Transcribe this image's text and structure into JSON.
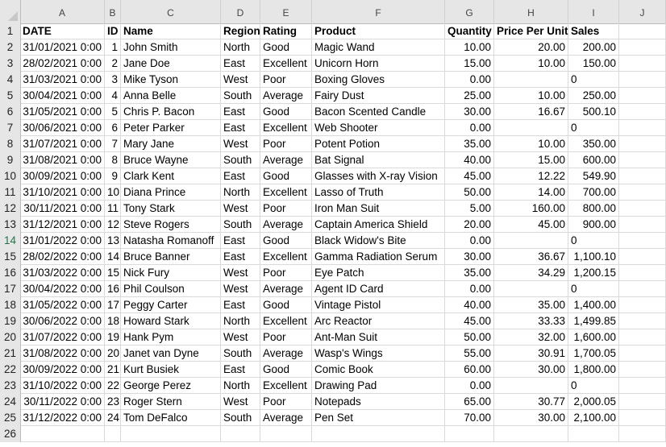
{
  "columns": [
    "A",
    "B",
    "C",
    "D",
    "E",
    "F",
    "G",
    "H",
    "I",
    "J"
  ],
  "headers": [
    "DATE",
    "ID",
    "Name",
    "Region",
    "Rating",
    "Product",
    "Quantity",
    "Price Per Unit",
    "Sales"
  ],
  "rows": [
    [
      "31/01/2021 0:00",
      "1",
      "John Smith",
      "North",
      "Good",
      "Magic Wand",
      "10.00",
      "20.00",
      "200.00"
    ],
    [
      "28/02/2021 0:00",
      "2",
      "Jane Doe",
      "East",
      "Excellent",
      "Unicorn Horn",
      "15.00",
      "10.00",
      "150.00"
    ],
    [
      "31/03/2021 0:00",
      "3",
      "Mike Tyson",
      "West",
      "Poor",
      "Boxing Gloves",
      "0.00",
      "",
      "0"
    ],
    [
      "30/04/2021 0:00",
      "4",
      "Anna Belle",
      "South",
      "Average",
      "Fairy Dust",
      "25.00",
      "10.00",
      "250.00"
    ],
    [
      "31/05/2021 0:00",
      "5",
      "Chris P. Bacon",
      "East",
      "Good",
      "Bacon Scented Candle",
      "30.00",
      "16.67",
      "500.10"
    ],
    [
      "30/06/2021 0:00",
      "6",
      "Peter Parker",
      "East",
      "Excellent",
      "Web Shooter",
      "0.00",
      "",
      "0"
    ],
    [
      "31/07/2021 0:00",
      "7",
      "Mary Jane",
      "West",
      "Poor",
      "Potent Potion",
      "35.00",
      "10.00",
      "350.00"
    ],
    [
      "31/08/2021 0:00",
      "8",
      "Bruce Wayne",
      "South",
      "Average",
      "Bat Signal",
      "40.00",
      "15.00",
      "600.00"
    ],
    [
      "30/09/2021 0:00",
      "9",
      "Clark Kent",
      "East",
      "Good",
      "Glasses with X-ray Vision",
      "45.00",
      "12.22",
      "549.90"
    ],
    [
      "31/10/2021 0:00",
      "10",
      "Diana Prince",
      "North",
      "Excellent",
      "Lasso of Truth",
      "50.00",
      "14.00",
      "700.00"
    ],
    [
      "30/11/2021 0:00",
      "11",
      "Tony Stark",
      "West",
      "Poor",
      "Iron Man Suit",
      "5.00",
      "160.00",
      "800.00"
    ],
    [
      "31/12/2021 0:00",
      "12",
      "Steve Rogers",
      "South",
      "Average",
      "Captain America Shield",
      "20.00",
      "45.00",
      "900.00"
    ],
    [
      "31/01/2022 0:00",
      "13",
      "Natasha Romanoff",
      "East",
      "Good",
      "Black Widow's Bite",
      "0.00",
      "",
      "0"
    ],
    [
      "28/02/2022 0:00",
      "14",
      "Bruce Banner",
      "East",
      "Excellent",
      "Gamma Radiation Serum",
      "30.00",
      "36.67",
      "1,100.10"
    ],
    [
      "31/03/2022 0:00",
      "15",
      "Nick Fury",
      "West",
      "Poor",
      "Eye Patch",
      "35.00",
      "34.29",
      "1,200.15"
    ],
    [
      "30/04/2022 0:00",
      "16",
      "Phil Coulson",
      "West",
      "Average",
      "Agent ID Card",
      "0.00",
      "",
      "0"
    ],
    [
      "31/05/2022 0:00",
      "17",
      "Peggy Carter",
      "East",
      "Good",
      "Vintage Pistol",
      "40.00",
      "35.00",
      "1,400.00"
    ],
    [
      "30/06/2022 0:00",
      "18",
      "Howard Stark",
      "North",
      "Excellent",
      "Arc Reactor",
      "45.00",
      "33.33",
      "1,499.85"
    ],
    [
      "31/07/2022 0:00",
      "19",
      "Hank Pym",
      "West",
      "Poor",
      "Ant-Man Suit",
      "50.00",
      "32.00",
      "1,600.00"
    ],
    [
      "31/08/2022 0:00",
      "20",
      "Janet van Dyne",
      "South",
      "Average",
      "Wasp's Wings",
      "55.00",
      "30.91",
      "1,700.05"
    ],
    [
      "30/09/2022 0:00",
      "21",
      "Kurt Busiek",
      "East",
      "Good",
      "Comic Book",
      "60.00",
      "30.00",
      "1,800.00"
    ],
    [
      "31/10/2022 0:00",
      "22",
      "George Perez",
      "North",
      "Excellent",
      "Drawing Pad",
      "0.00",
      "",
      "0"
    ],
    [
      "30/11/2022 0:00",
      "23",
      "Roger Stern",
      "West",
      "Poor",
      "Notepads",
      "65.00",
      "30.77",
      "2,000.05"
    ],
    [
      "31/12/2022 0:00",
      "24",
      "Tom DeFalco",
      "South",
      "Average",
      "Pen Set",
      "70.00",
      "30.00",
      "2,100.00"
    ]
  ],
  "row_numbers": [
    "1",
    "2",
    "3",
    "4",
    "5",
    "6",
    "7",
    "8",
    "9",
    "10",
    "11",
    "12",
    "13",
    "14",
    "15",
    "16",
    "17",
    "18",
    "19",
    "20",
    "21",
    "22",
    "23",
    "24",
    "25",
    "26"
  ],
  "active_row": "14",
  "colors": {
    "header_bg": "#e6e6e6",
    "active_row_number": "#217346",
    "gridline": "#dadada"
  }
}
